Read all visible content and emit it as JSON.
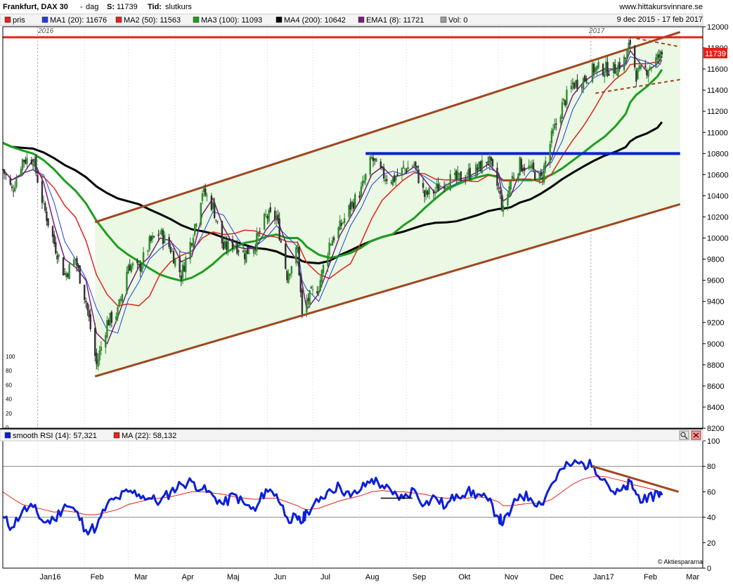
{
  "header": {
    "title": "Frankfurt, DAX 30",
    "sep": "-",
    "period": "dag",
    "last_label": "S:",
    "last_value": "11739",
    "type_label": "Tid:",
    "type_value": "slutkurs",
    "site": "www.hittakursvinnare.se"
  },
  "legend_main": {
    "items": [
      {
        "label": "pris",
        "color": "#dd2222"
      },
      {
        "label": "MA1 (20): 11676",
        "color": "#1f3fd9"
      },
      {
        "label": "MA2 (50): 11563",
        "color": "#e2231a"
      },
      {
        "label": "MA3 (100): 11093",
        "color": "#1e9e1e"
      },
      {
        "label": "MA4 (200): 10642",
        "color": "#000000"
      },
      {
        "label": "EMA1 (8): 11721",
        "color": "#7a1c7a"
      },
      {
        "label": "Vol: 0",
        "color": "#9a9a9a"
      }
    ],
    "date_range": "9 dec 2015 - 17 feb 2017"
  },
  "legend_rsi": {
    "items": [
      {
        "label": "smooth RSI (14): 57,321",
        "color": "#0b1fd8"
      },
      {
        "label": "MA (22): 58,132",
        "color": "#e2231a"
      }
    ]
  },
  "year_labels": [
    "2016",
    "2017"
  ],
  "last_price_badge": "11739",
  "volume_axis_ticks": [
    "100",
    "80",
    "60",
    "40",
    "20",
    "0"
  ],
  "copyright": "© Aktiespararna",
  "colors": {
    "channel_line": "#a0461f",
    "support_line": "#0b1fd8",
    "resistance_line": "#e2231a",
    "channel_fill": "#eaf8e4",
    "candle_up": "#2e8b2e",
    "candle_down": "#333333",
    "rsi_line": "#0b1fd8",
    "rsi_ma": "#e2231a"
  },
  "chart_data": [
    {
      "type": "candlestick",
      "title": "Frankfurt, DAX 30",
      "x_tick_labels": [
        "Jan16",
        "Feb",
        "Mar",
        "Apr",
        "Maj",
        "Jun",
        "Jul",
        "Aug",
        "Sep",
        "Okt",
        "Nov",
        "Dec",
        "Jan17",
        "Feb",
        "Mar"
      ],
      "y_ticks": [
        8200,
        8400,
        8600,
        8800,
        9000,
        9200,
        9400,
        9600,
        9800,
        10000,
        10200,
        10400,
        10600,
        10800,
        11000,
        11200,
        11400,
        11600,
        11800,
        12000
      ],
      "ylim": [
        8200,
        12000
      ],
      "close_series": {
        "x": [
          "2015-12-09",
          "2015-12-15",
          "2015-12-22",
          "2015-12-29",
          "2016-01-05",
          "2016-01-12",
          "2016-01-19",
          "2016-01-26",
          "2016-02-02",
          "2016-02-09",
          "2016-02-16",
          "2016-02-23",
          "2016-03-01",
          "2016-03-08",
          "2016-03-15",
          "2016-03-22",
          "2016-03-29",
          "2016-04-05",
          "2016-04-12",
          "2016-04-19",
          "2016-04-26",
          "2016-05-03",
          "2016-05-10",
          "2016-05-17",
          "2016-05-24",
          "2016-05-31",
          "2016-06-07",
          "2016-06-14",
          "2016-06-21",
          "2016-06-24",
          "2016-06-27",
          "2016-07-05",
          "2016-07-12",
          "2016-07-19",
          "2016-07-26",
          "2016-08-02",
          "2016-08-09",
          "2016-08-16",
          "2016-08-23",
          "2016-08-30",
          "2016-09-06",
          "2016-09-13",
          "2016-09-20",
          "2016-09-27",
          "2016-10-04",
          "2016-10-11",
          "2016-10-18",
          "2016-10-25",
          "2016-11-01",
          "2016-11-04",
          "2016-11-09",
          "2016-11-15",
          "2016-11-22",
          "2016-11-29",
          "2016-12-06",
          "2016-12-13",
          "2016-12-20",
          "2016-12-27",
          "2017-01-03",
          "2017-01-10",
          "2017-01-17",
          "2017-01-24",
          "2017-01-27",
          "2017-01-31",
          "2017-02-07",
          "2017-02-14",
          "2017-02-17"
        ],
        "close": [
          10650,
          10450,
          10740,
          10750,
          10300,
          9950,
          9650,
          9800,
          9400,
          8800,
          9200,
          9300,
          9750,
          9700,
          9950,
          10050,
          9900,
          9650,
          10000,
          10450,
          10300,
          9900,
          9950,
          9850,
          9950,
          10200,
          10200,
          9650,
          9900,
          9250,
          9400,
          9550,
          9950,
          10100,
          10300,
          10450,
          10750,
          10600,
          10550,
          10650,
          10700,
          10400,
          10450,
          10550,
          10550,
          10600,
          10650,
          10750,
          10450,
          10250,
          10550,
          10700,
          10650,
          10550,
          10950,
          11250,
          11450,
          11500,
          11600,
          11600,
          11600,
          11700,
          11850,
          11550,
          11600,
          11700,
          11739
        ]
      },
      "moving_averages": [
        {
          "name": "MA1 (20)",
          "last": 11676
        },
        {
          "name": "MA2 (50)",
          "last": 11563
        },
        {
          "name": "MA3 (100)",
          "last": 11093
        },
        {
          "name": "MA4 (200)",
          "last": 10642
        },
        {
          "name": "EMA1 (8)",
          "last": 11721
        }
      ],
      "horizontal_lines": [
        {
          "level": 10800,
          "color": "blue"
        },
        {
          "level": 11900,
          "color": "red"
        }
      ],
      "trend_channel": {
        "lower": [
          [
            "2016-02-08",
            8690
          ],
          [
            "2017-03-01",
            10320
          ]
        ],
        "upper": [
          [
            "2016-02-08",
            10150
          ],
          [
            "2017-03-01",
            11950
          ]
        ]
      }
    },
    {
      "type": "line",
      "title": "smooth RSI (14)",
      "y_ticks": [
        0,
        20,
        40,
        60,
        80,
        100
      ],
      "ylim": [
        0,
        100
      ],
      "reference_lines": [
        40,
        80
      ],
      "series": [
        {
          "name": "smooth RSI (14)",
          "last": 57.321,
          "values": [
            40,
            32,
            45,
            48,
            36,
            38,
            50,
            45,
            30,
            32,
            50,
            55,
            60,
            58,
            55,
            52,
            60,
            66,
            68,
            62,
            57,
            50,
            58,
            50,
            45,
            62,
            58,
            40,
            38,
            36,
            45,
            52,
            62,
            64,
            56,
            62,
            70,
            65,
            58,
            55,
            62,
            50,
            56,
            48,
            58,
            60,
            58,
            53,
            40,
            35,
            45,
            58,
            55,
            50,
            66,
            78,
            82,
            82,
            80,
            70,
            58,
            62,
            68,
            58,
            52,
            60,
            57.3
          ]
        },
        {
          "name": "MA (22)",
          "last": 58.132,
          "values": [
            60,
            55,
            50,
            48,
            46,
            44,
            45,
            44,
            42,
            42,
            44,
            46,
            50,
            52,
            54,
            55,
            56,
            58,
            60,
            60,
            59,
            58,
            56,
            55,
            54,
            55,
            55,
            52,
            49,
            47,
            46,
            47,
            50,
            53,
            55,
            57,
            60,
            61,
            60,
            60,
            59,
            58,
            56,
            55,
            55,
            55,
            56,
            55,
            52,
            49,
            49,
            50,
            51,
            51,
            54,
            60,
            66,
            70,
            72,
            72,
            70,
            68,
            66,
            65,
            63,
            61,
            58.1
          ]
        }
      ],
      "trend_line": [
        [
          "2017-01-02",
          80
        ],
        [
          "2017-02-28",
          60
        ]
      ]
    }
  ]
}
